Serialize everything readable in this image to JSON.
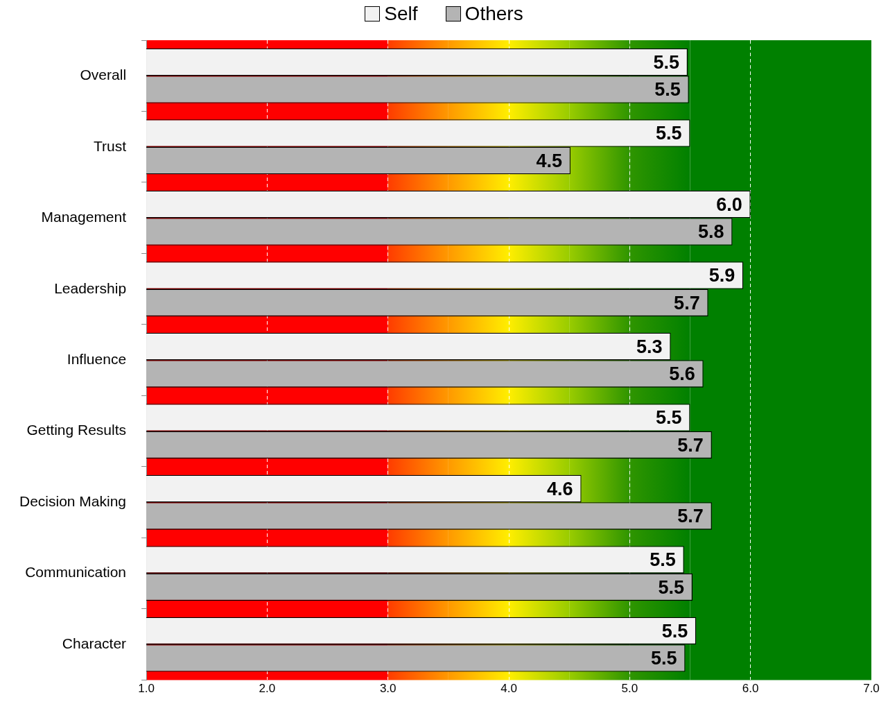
{
  "chart_data": {
    "type": "bar",
    "orientation": "horizontal",
    "categories": [
      "Overall",
      "Trust",
      "Management",
      "Leadership",
      "Influence",
      "Getting Results",
      "Decision Making",
      "Communication",
      "Character"
    ],
    "series": [
      {
        "name": "Self",
        "color": "#f2f2f2",
        "values": [
          5.48,
          5.5,
          6.0,
          5.94,
          5.34,
          5.5,
          4.6,
          5.45,
          5.55
        ],
        "value_labels": [
          "5.5",
          "5.5",
          "6.0",
          "5.9",
          "5.3",
          "5.5",
          "4.6",
          "5.5",
          "5.5"
        ]
      },
      {
        "name": "Others",
        "color": "#b4b4b4",
        "values": [
          5.49,
          4.51,
          5.85,
          5.65,
          5.61,
          5.68,
          5.68,
          5.52,
          5.46
        ],
        "value_labels": [
          "5.5",
          "4.5",
          "5.8",
          "5.7",
          "5.6",
          "5.7",
          "5.7",
          "5.5",
          "5.5"
        ]
      }
    ],
    "xlim": [
      1,
      7
    ],
    "xticks": [
      {
        "value": 1,
        "label": "1.0"
      },
      {
        "value": 2,
        "label": "2.0"
      },
      {
        "value": 3,
        "label": "3.0"
      },
      {
        "value": 4,
        "label": "4.0"
      },
      {
        "value": 5,
        "label": "5.0"
      },
      {
        "value": 6,
        "label": "6.0"
      },
      {
        "value": 7,
        "label": "7.0"
      }
    ],
    "bands": [
      {
        "axis": "x",
        "from": 1,
        "to": 3,
        "color": "#ff0000"
      },
      {
        "axis": "x",
        "from": 3,
        "to": 3.5,
        "color": "#ff3c00"
      },
      {
        "axis": "x",
        "from": 3.5,
        "to": 4,
        "color": "#ff9900"
      },
      {
        "axis": "x",
        "from": 4,
        "to": 4.5,
        "color": "#ffee00"
      },
      {
        "axis": "x",
        "from": 4.5,
        "to": 5,
        "color": "#99cc00"
      },
      {
        "axis": "x",
        "from": 5,
        "to": 5.5,
        "color": "#2f9500"
      },
      {
        "axis": "x",
        "from": 5.5,
        "to": 7,
        "color": "#008000"
      }
    ],
    "grid": "x",
    "legend": "top"
  }
}
